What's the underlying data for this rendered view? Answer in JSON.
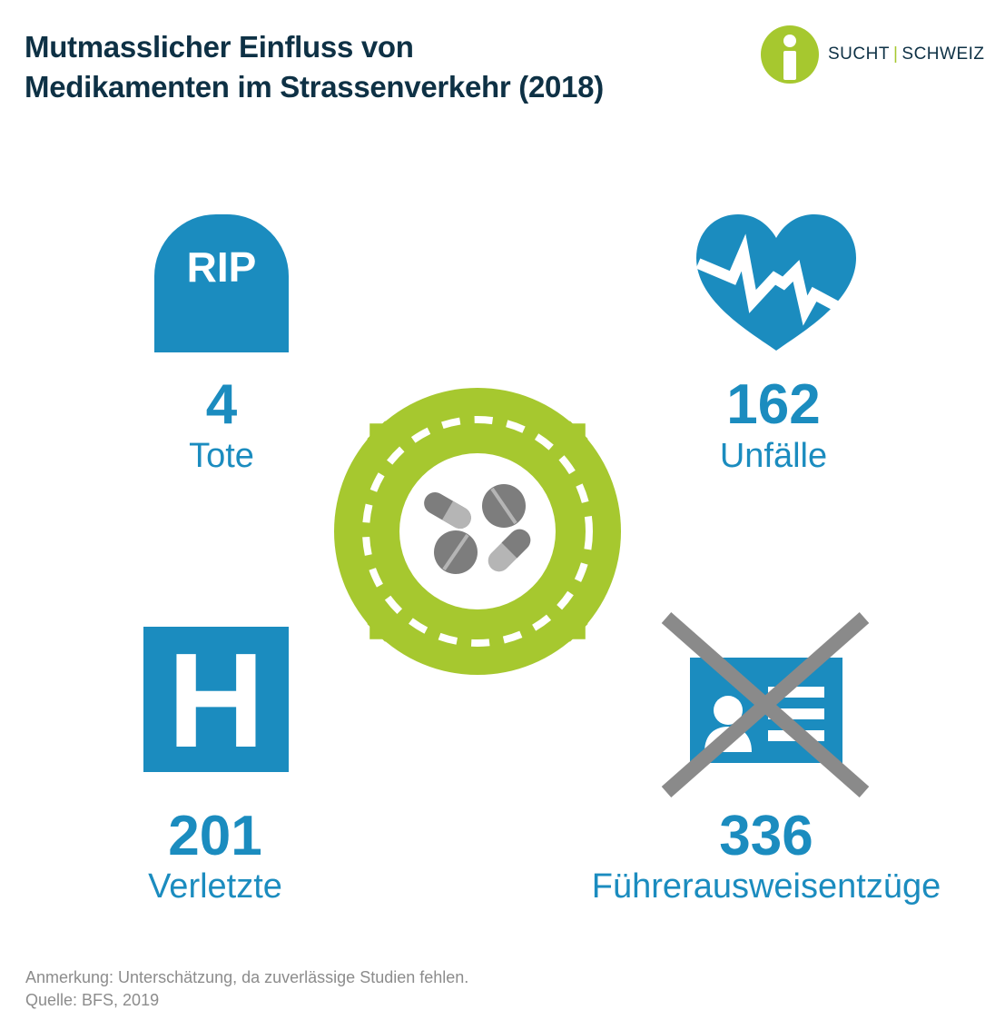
{
  "header": {
    "title_line1": "Mutmasslicher Einfluss von",
    "title_line2": "Medikamenten im Strassenverkehr (2018)"
  },
  "logo": {
    "word1": "SUCHT",
    "separator": "|",
    "word2": "SCHWEIZ"
  },
  "colors": {
    "accent_blue": "#1b8cbf",
    "accent_green": "#a6c82f",
    "title_navy": "#0e3145",
    "note_gray": "#8c8c8c",
    "pill_gray": "#7d7d7d"
  },
  "stats": [
    {
      "icon": "tombstone-icon",
      "icon_text": "RIP",
      "value": "4",
      "label": "Tote"
    },
    {
      "icon": "heart-pulse-icon",
      "value": "162",
      "label": "Unfälle"
    },
    {
      "icon": "hospital-icon",
      "icon_text": "H",
      "value": "201",
      "label": "Verletzte"
    },
    {
      "icon": "crossed-license-icon",
      "value": "336",
      "label": "Führerausweisentzüge"
    }
  ],
  "center_icon": "roundabout-pills-icon",
  "notes": {
    "remark": "Anmerkung: Unterschätzung, da zuverlässige Studien fehlen.",
    "source": "Quelle: BFS, 2019"
  }
}
